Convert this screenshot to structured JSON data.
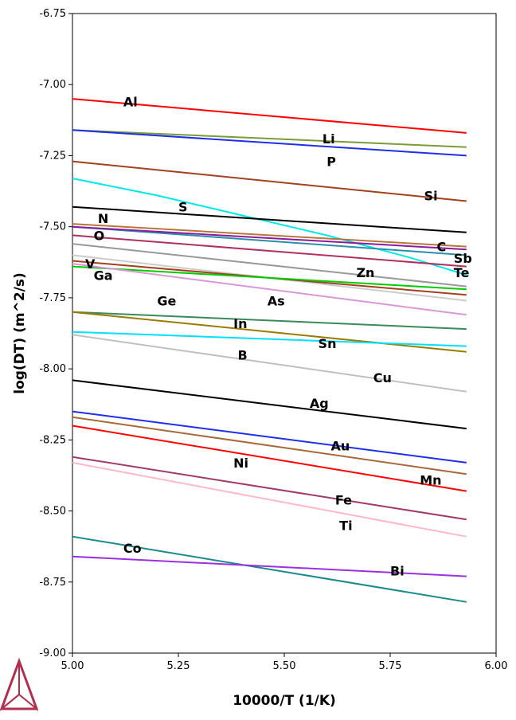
{
  "chart_data": {
    "type": "line",
    "title": "",
    "xlabel": "10000/T (1/K)",
    "ylabel": "log(DT) (m^2/s)",
    "xlim": [
      5.0,
      6.0
    ],
    "ylim": [
      -9.0,
      -6.75
    ],
    "xticks": [
      "5.00",
      "5.25",
      "5.50",
      "5.75",
      "6.00"
    ],
    "yticks": [
      "-9.00",
      "-8.75",
      "-8.50",
      "-8.25",
      "-8.00",
      "-7.75",
      "-7.50",
      "-7.25",
      "-7.00",
      "-6.75"
    ],
    "grid": false,
    "series": [
      {
        "name": "Al",
        "color": "#ff0000",
        "x": [
          5.0,
          5.93
        ],
        "y": [
          -7.05,
          -7.17
        ],
        "label_at": [
          5.12,
          -7.06
        ]
      },
      {
        "name": "Li",
        "color": "#7b9a3a",
        "x": [
          5.0,
          5.93
        ],
        "y": [
          -7.16,
          -7.22
        ],
        "label_at": [
          5.59,
          -7.19
        ]
      },
      {
        "name": "P",
        "color": "#1f2fe8",
        "x": [
          5.0,
          5.93
        ],
        "y": [
          -7.16,
          -7.25
        ],
        "label_at": [
          5.6,
          -7.27
        ]
      },
      {
        "name": "Si",
        "color": "#a0421e",
        "x": [
          5.0,
          5.93
        ],
        "y": [
          -7.27,
          -7.41
        ],
        "label_at": [
          5.83,
          -7.39
        ]
      },
      {
        "name": "S",
        "color": "#00e8e8",
        "x": [
          5.0,
          5.2,
          5.4,
          5.6,
          5.8,
          5.93
        ],
        "y": [
          -7.33,
          -7.39,
          -7.46,
          -7.53,
          -7.61,
          -7.67
        ],
        "label_at": [
          5.25,
          -7.43
        ]
      },
      {
        "name": "N",
        "color": "#000000",
        "x": [
          5.0,
          5.93
        ],
        "y": [
          -7.43,
          -7.52
        ],
        "label_at": [
          5.06,
          -7.47
        ]
      },
      {
        "name": "O",
        "color": "#b8763a",
        "x": [
          5.0,
          5.93
        ],
        "y": [
          -7.49,
          -7.57
        ],
        "label_at": [
          5.05,
          -7.53
        ]
      },
      {
        "name": "C",
        "color": "#2b8faa",
        "x": [
          5.0,
          5.93
        ],
        "y": [
          -7.5,
          -7.6
        ],
        "label_at": [
          5.86,
          -7.57
        ]
      },
      {
        "name": "Sb",
        "color": "#8c1a9c",
        "x": [
          5.0,
          5.93
        ],
        "y": [
          -7.5,
          -7.58
        ],
        "label_at": [
          5.9,
          -7.61
        ]
      },
      {
        "name": "Te",
        "color": "#b03060",
        "x": [
          5.0,
          5.93
        ],
        "y": [
          -7.53,
          -7.64
        ],
        "label_at": [
          5.9,
          -7.66
        ]
      },
      {
        "name": "Zn",
        "color": "#999999",
        "x": [
          5.0,
          5.93
        ],
        "y": [
          -7.56,
          -7.71
        ],
        "label_at": [
          5.67,
          -7.66
        ]
      },
      {
        "name": "V",
        "color": "#cccccc",
        "x": [
          5.0,
          5.93
        ],
        "y": [
          -7.6,
          -7.76
        ],
        "label_at": [
          5.03,
          -7.63
        ]
      },
      {
        "name": "Ga",
        "color": "#a0421e",
        "x": [
          5.0,
          5.93
        ],
        "y": [
          -7.62,
          -7.74
        ],
        "label_at": [
          5.05,
          -7.67
        ]
      },
      {
        "name": "Ge",
        "color": "#00cc00",
        "x": [
          5.0,
          5.93
        ],
        "y": [
          -7.64,
          -7.72
        ],
        "label_at": [
          5.2,
          -7.76
        ]
      },
      {
        "name": "As",
        "color": "#d898d8",
        "x": [
          5.0,
          5.93
        ],
        "y": [
          -7.63,
          -7.81
        ],
        "label_at": [
          5.46,
          -7.76
        ]
      },
      {
        "name": "In",
        "color": "#3a8a5a",
        "x": [
          5.0,
          5.93
        ],
        "y": [
          -7.8,
          -7.86
        ],
        "label_at": [
          5.38,
          -7.84
        ]
      },
      {
        "name": "Sn",
        "color": "#9a7a00",
        "x": [
          5.0,
          5.93
        ],
        "y": [
          -7.8,
          -7.94
        ],
        "label_at": [
          5.58,
          -7.91
        ]
      },
      {
        "name": "B",
        "color": "#00e0ff",
        "x": [
          5.0,
          5.93
        ],
        "y": [
          -7.87,
          -7.92
        ],
        "label_at": [
          5.39,
          -7.95
        ]
      },
      {
        "name": "Cu",
        "color": "#c0c0c0",
        "x": [
          5.0,
          5.93
        ],
        "y": [
          -7.88,
          -8.08
        ],
        "label_at": [
          5.71,
          -8.03
        ]
      },
      {
        "name": "Ag",
        "color": "#000000",
        "x": [
          5.0,
          5.93
        ],
        "y": [
          -8.04,
          -8.21
        ],
        "label_at": [
          5.56,
          -8.12
        ]
      },
      {
        "name": "Au",
        "color": "#1f2fe8",
        "x": [
          5.0,
          5.93
        ],
        "y": [
          -8.15,
          -8.33
        ],
        "label_at": [
          5.61,
          -8.27
        ]
      },
      {
        "name": "Mn",
        "color": "#a8683a",
        "x": [
          5.0,
          5.93
        ],
        "y": [
          -8.17,
          -8.37
        ],
        "label_at": [
          5.82,
          -8.39
        ]
      },
      {
        "name": "Ni",
        "color": "#ff0000",
        "x": [
          5.0,
          5.93
        ],
        "y": [
          -8.2,
          -8.43
        ],
        "label_at": [
          5.38,
          -8.33
        ]
      },
      {
        "name": "Fe",
        "color": "#a03a6a",
        "x": [
          5.0,
          5.93
        ],
        "y": [
          -8.31,
          -8.53
        ],
        "label_at": [
          5.62,
          -8.46
        ]
      },
      {
        "name": "Ti",
        "color": "#ffb8c8",
        "x": [
          5.0,
          5.93
        ],
        "y": [
          -8.33,
          -8.59
        ],
        "label_at": [
          5.63,
          -8.55
        ]
      },
      {
        "name": "Co",
        "color": "#1a8a8a",
        "x": [
          5.0,
          5.93
        ],
        "y": [
          -8.59,
          -8.82
        ],
        "label_at": [
          5.12,
          -8.63
        ]
      },
      {
        "name": "Bi",
        "color": "#9a30e0",
        "x": [
          5.0,
          5.93
        ],
        "y": [
          -8.66,
          -8.73
        ],
        "label_at": [
          5.75,
          -8.71
        ]
      }
    ]
  },
  "logo": {
    "name": "thermo-calc-logo",
    "color": "#b03050"
  }
}
